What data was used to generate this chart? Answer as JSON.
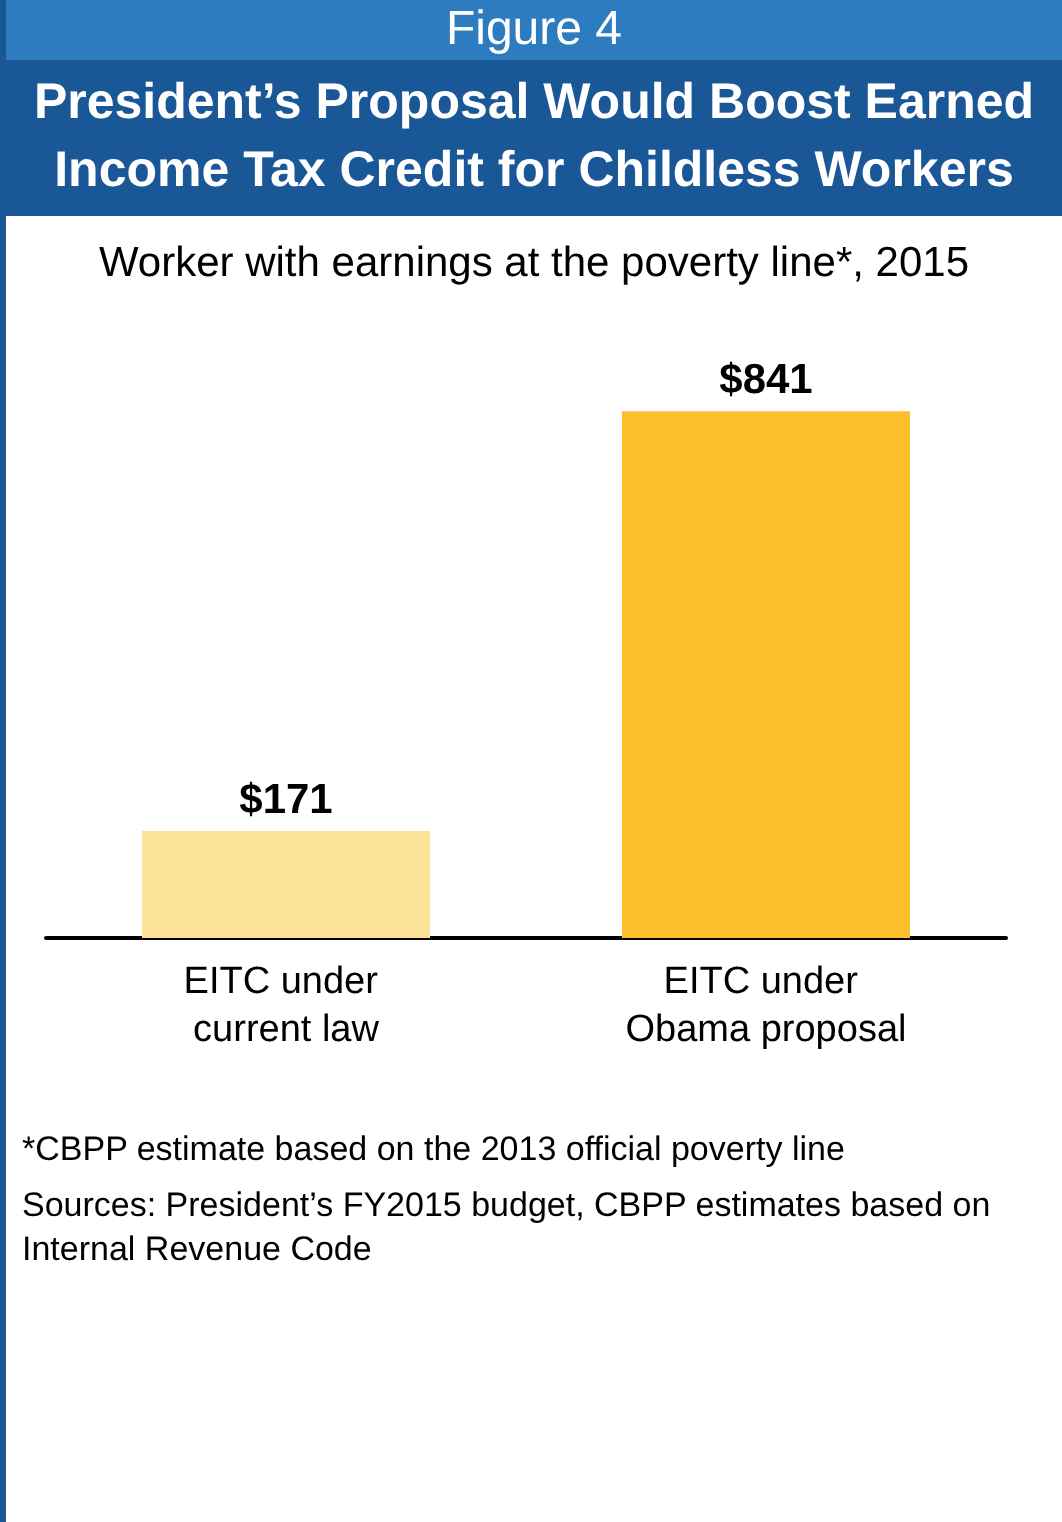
{
  "chart_data": {
    "type": "bar",
    "title": "President’s Proposal Would Boost Earned Income Tax Credit for Childless Workers",
    "subtitle": "Worker with earnings at the poverty line*, 2015",
    "annotations": [
      "Figure 4",
      "*CBPP estimate based on the 2013 official poverty line",
      "Sources: President’s FY2015 budget, CBPP estimates based on Internal Revenue Code"
    ],
    "categories": [
      "EITC under current law",
      "EITC under Obama proposal"
    ],
    "values": [
      171,
      841
    ],
    "colors": [
      "#fde29a",
      "#fbbf2d"
    ],
    "value_labels": [
      "$171",
      "$841"
    ]
  }
}
